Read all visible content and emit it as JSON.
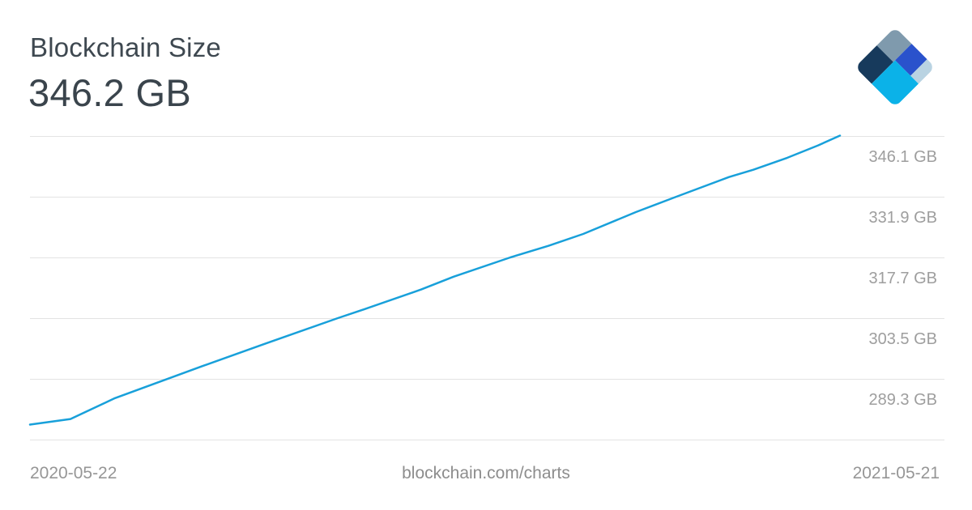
{
  "header": {
    "title": "Blockchain Size",
    "value": "346.2 GB"
  },
  "logo": {
    "name": "blockchain-com-diamond-logo",
    "colors": {
      "slate": "#7F9AAD",
      "navy": "#173A5C",
      "royal": "#2A52CC",
      "pale": "#B9D3E2",
      "cyan": "#0BB2E8"
    }
  },
  "footer": {
    "watermark": "blockchain.com/charts"
  },
  "chart_data": {
    "type": "line",
    "title": "Blockchain Size",
    "current_value_label": "346.2 GB",
    "unit": "GB",
    "x_start_label": "2020-05-22",
    "x_end_label": "2021-05-21",
    "y_axis_side": "right",
    "grid": true,
    "legend": "none",
    "y_tick_labels": [
      "346.1 GB",
      "331.9 GB",
      "317.7 GB",
      "303.5 GB",
      "289.3 GB"
    ],
    "y_tick_values": [
      346.1,
      331.9,
      317.7,
      303.5,
      289.3
    ],
    "y_tick_step": 14.2,
    "line_color": "#18A0DA",
    "grid_color": "#E3E3E3",
    "tick_label_color": "#9E9E9E",
    "series": [
      {
        "name": "Blockchain Size",
        "unit": "GB",
        "x_start": "2020-05-22",
        "x_end": "2021-05-21",
        "points": [
          [
            0.0,
            278.6
          ],
          [
            0.05,
            279.9
          ],
          [
            0.105,
            284.8
          ],
          [
            0.213,
            292.3
          ],
          [
            0.29,
            297.5
          ],
          [
            0.38,
            303.5
          ],
          [
            0.413,
            305.6
          ],
          [
            0.483,
            310.2
          ],
          [
            0.523,
            313.2
          ],
          [
            0.593,
            317.7
          ],
          [
            0.64,
            320.4
          ],
          [
            0.683,
            323.2
          ],
          [
            0.748,
            328.3
          ],
          [
            0.798,
            331.9
          ],
          [
            0.863,
            336.5
          ],
          [
            0.893,
            338.2
          ],
          [
            0.935,
            341.0
          ],
          [
            0.973,
            343.9
          ],
          [
            1.0,
            346.2
          ]
        ]
      }
    ]
  }
}
